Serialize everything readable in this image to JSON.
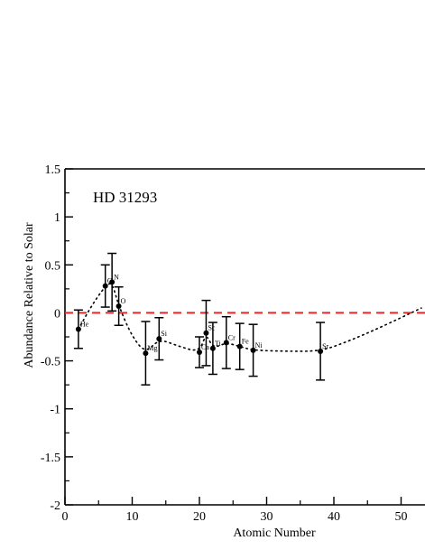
{
  "chart_data": {
    "type": "scatter",
    "star_label": "HD 31293",
    "xlabel": "Atomic Number",
    "ylabel": "Abundance Relative to Solar",
    "xlim": [
      0,
      53
    ],
    "ylim": [
      -2,
      1.5
    ],
    "x_ticks": [
      {
        "value": 0,
        "label": "0"
      },
      {
        "value": 10,
        "label": "10"
      },
      {
        "value": 20,
        "label": "20"
      },
      {
        "value": 30,
        "label": "30"
      },
      {
        "value": 40,
        "label": "40"
      },
      {
        "value": 50,
        "label": "50"
      }
    ],
    "y_ticks": [
      {
        "value": 1.5,
        "label": "1.5"
      },
      {
        "value": 1,
        "label": "1"
      },
      {
        "value": 0.5,
        "label": "0.5"
      },
      {
        "value": 0,
        "label": "0"
      },
      {
        "value": -0.5,
        "label": "-0.5"
      },
      {
        "value": -1,
        "label": "-1"
      },
      {
        "value": -1.5,
        "label": "-1.5"
      },
      {
        "value": -2,
        "label": "-2"
      }
    ],
    "solar_reference_line": 0,
    "solar_line_color": "#e8282b",
    "series": [
      {
        "points": [
          {
            "element": "He",
            "x": 2,
            "y": -0.17,
            "err": 0.2
          },
          {
            "element": "C",
            "x": 6,
            "y": 0.28,
            "err": 0.22
          },
          {
            "element": "N",
            "x": 7,
            "y": 0.32,
            "err": 0.3
          },
          {
            "element": "O",
            "x": 8,
            "y": 0.07,
            "err": 0.2
          },
          {
            "element": "Mg",
            "x": 12,
            "y": -0.42,
            "err": 0.33
          },
          {
            "element": "Si",
            "x": 14,
            "y": -0.27,
            "err": 0.22
          },
          {
            "element": "Ca",
            "x": 20,
            "y": -0.41,
            "err": 0.16
          },
          {
            "element": "Sc",
            "x": 21,
            "y": -0.21,
            "err": 0.34
          },
          {
            "element": "Ti",
            "x": 22,
            "y": -0.37,
            "err": 0.27
          },
          {
            "element": "Cr",
            "x": 24,
            "y": -0.31,
            "err": 0.27
          },
          {
            "element": "Fe",
            "x": 26,
            "y": -0.35,
            "err": 0.24
          },
          {
            "element": "Ni",
            "x": 28,
            "y": -0.39,
            "err": 0.27
          },
          {
            "element": "Sr",
            "x": 38,
            "y": -0.4,
            "err": 0.3
          }
        ]
      }
    ],
    "trend_curve": [
      {
        "x": 2,
        "y": -0.17
      },
      {
        "x": 4,
        "y": 0.08
      },
      {
        "x": 6,
        "y": 0.28
      },
      {
        "x": 7,
        "y": 0.32
      },
      {
        "x": 8,
        "y": 0.07
      },
      {
        "x": 10,
        "y": -0.25
      },
      {
        "x": 12,
        "y": -0.42
      },
      {
        "x": 14,
        "y": -0.27
      },
      {
        "x": 17,
        "y": -0.35
      },
      {
        "x": 20,
        "y": -0.41
      },
      {
        "x": 21,
        "y": -0.21
      },
      {
        "x": 22,
        "y": -0.37
      },
      {
        "x": 24,
        "y": -0.31
      },
      {
        "x": 26,
        "y": -0.35
      },
      {
        "x": 28,
        "y": -0.39
      },
      {
        "x": 33,
        "y": -0.4
      },
      {
        "x": 38,
        "y": -0.4
      },
      {
        "x": 42,
        "y": -0.3
      },
      {
        "x": 46,
        "y": -0.18
      },
      {
        "x": 50,
        "y": -0.05
      },
      {
        "x": 53,
        "y": 0.05
      }
    ],
    "grid": false,
    "legend": "none"
  }
}
